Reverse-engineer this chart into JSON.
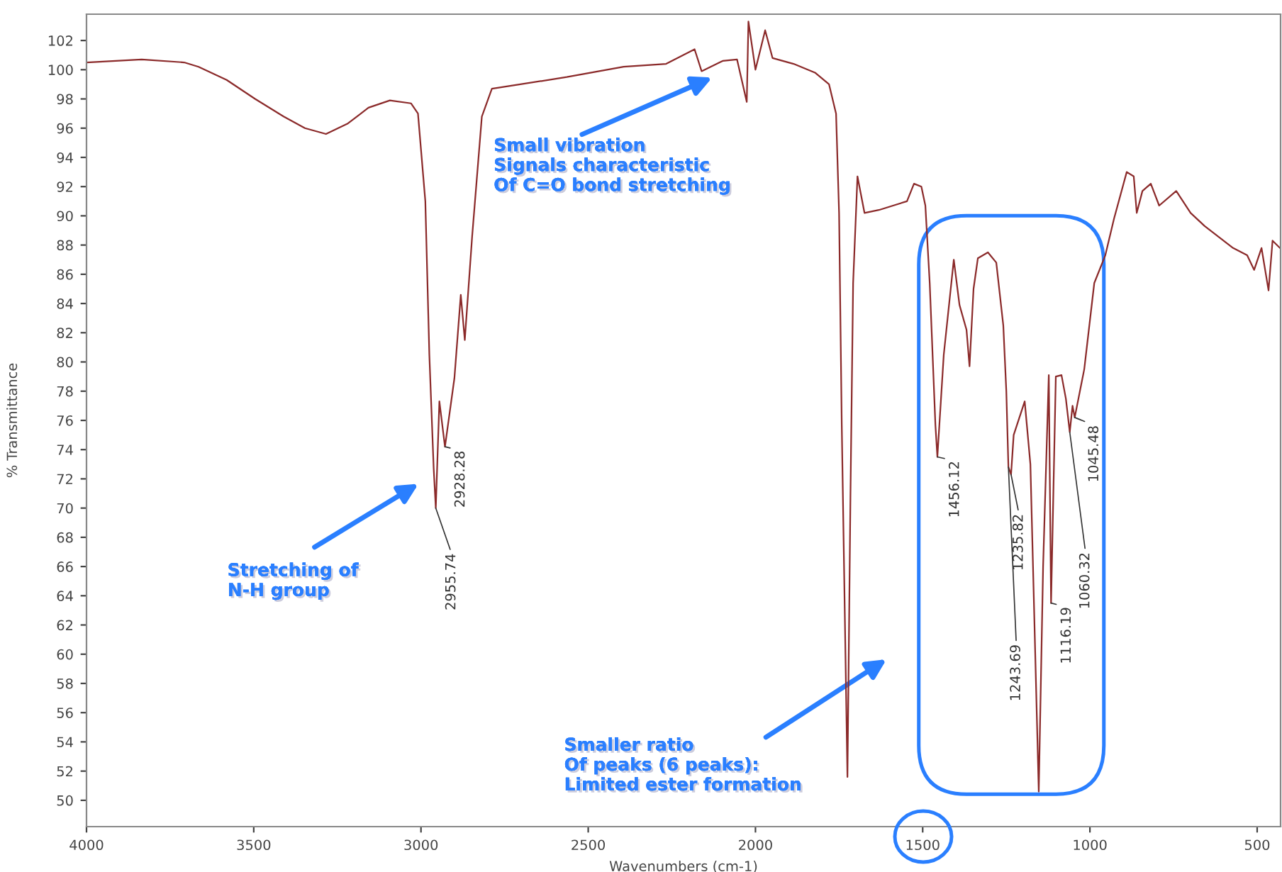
{
  "chart_data": {
    "type": "line",
    "xlabel": "Wavenumbers (cm-1)",
    "ylabel": "% Transmittance",
    "xlim": [
      4000,
      430
    ],
    "xticks": [
      4000,
      3500,
      3000,
      2500,
      2000,
      1500,
      1000,
      500
    ],
    "ylim": [
      48.2,
      103.8
    ],
    "yticks": [
      50,
      52,
      54,
      56,
      58,
      60,
      62,
      64,
      66,
      68,
      70,
      72,
      74,
      76,
      78,
      80,
      82,
      84,
      86,
      88,
      90,
      92,
      94,
      96,
      98,
      100,
      102
    ],
    "grid": false,
    "series": [
      {
        "color": "#8b2a2a",
        "x": [
          4000,
          3835,
          3708,
          3665,
          3581,
          3496,
          3411,
          3347,
          3284,
          3220,
          3157,
          3093,
          3030,
          3009,
          2987,
          2975,
          2962,
          2955.74,
          2945,
          2928.28,
          2900,
          2881,
          2869,
          2847,
          2818,
          2788,
          2703,
          2564,
          2394,
          2267,
          2182,
          2161,
          2098,
          2055,
          2026,
          2021,
          2000,
          1971,
          1949,
          1886,
          1822,
          1780,
          1759,
          1750,
          1742,
          1725,
          1716,
          1708,
          1695,
          1674,
          1631,
          1547,
          1526,
          1504,
          1492,
          1479,
          1462,
          1456.12,
          1437,
          1407,
          1390,
          1369,
          1360,
          1348,
          1335,
          1305,
          1280,
          1259,
          1250,
          1243.69,
          1235.82,
          1228,
          1195,
          1178,
          1153,
          1140,
          1123,
          1116.19,
          1102,
          1085,
          1072,
          1060.32,
          1052,
          1045.48,
          1017,
          987,
          954,
          928,
          890,
          869,
          860,
          843,
          818,
          793,
          742,
          699,
          657,
          572,
          530,
          509,
          487,
          466,
          454,
          432
        ],
        "values": [
          100.5,
          100.7,
          100.5,
          100.2,
          99.3,
          98.0,
          96.8,
          96.0,
          95.6,
          96.3,
          97.4,
          97.9,
          97.7,
          97.0,
          91.0,
          80.5,
          72.7,
          70.0,
          77.3,
          74.2,
          78.9,
          84.6,
          81.5,
          88.6,
          96.8,
          98.7,
          99.0,
          99.5,
          100.2,
          100.4,
          101.4,
          99.9,
          100.6,
          100.7,
          97.8,
          103.3,
          100.0,
          102.7,
          100.8,
          100.4,
          99.8,
          99.0,
          97.0,
          90.2,
          75.7,
          51.6,
          70.8,
          85.4,
          92.7,
          90.2,
          90.4,
          91.0,
          92.2,
          92.0,
          90.7,
          85.4,
          75.7,
          73.5,
          80.5,
          87.0,
          83.9,
          82.2,
          79.7,
          85.0,
          87.1,
          87.5,
          86.8,
          82.5,
          78.0,
          72.8,
          72.3,
          75.0,
          77.3,
          73.0,
          50.6,
          66.0,
          79.1,
          63.5,
          79.0,
          79.1,
          77.5,
          75.2,
          77.0,
          76.2,
          79.5,
          85.4,
          87.3,
          89.8,
          93.0,
          92.7,
          90.2,
          91.7,
          92.2,
          90.7,
          91.7,
          90.2,
          89.3,
          87.8,
          87.3,
          86.3,
          87.8,
          84.9,
          88.3,
          87.8
        ]
      }
    ],
    "annotations": [
      "Stretching of\nN-H group",
      "Small vibration\nSignals characteristic\nOf C=O bond stretching",
      "Smaller ratio\nOf peaks (6 peaks):\nLimited ester formation",
      {
        "text": "2955.74",
        "x": 2955.74,
        "y": 70.0
      },
      {
        "text": "2928.28",
        "x": 2928.28,
        "y": 74.2
      },
      {
        "text": "1456.12",
        "x": 1456.12,
        "y": 73.5
      },
      {
        "text": "1243.69",
        "x": 1243.69,
        "y": 72.8
      },
      {
        "text": "1235.82",
        "x": 1235.82,
        "y": 72.3
      },
      {
        "text": "1116.19",
        "x": 1116.19,
        "y": 63.5
      },
      {
        "text": "1060.32",
        "x": 1060.32,
        "y": 75.2
      },
      {
        "text": "1045.48",
        "x": 1045.48,
        "y": 76.2
      }
    ]
  }
}
